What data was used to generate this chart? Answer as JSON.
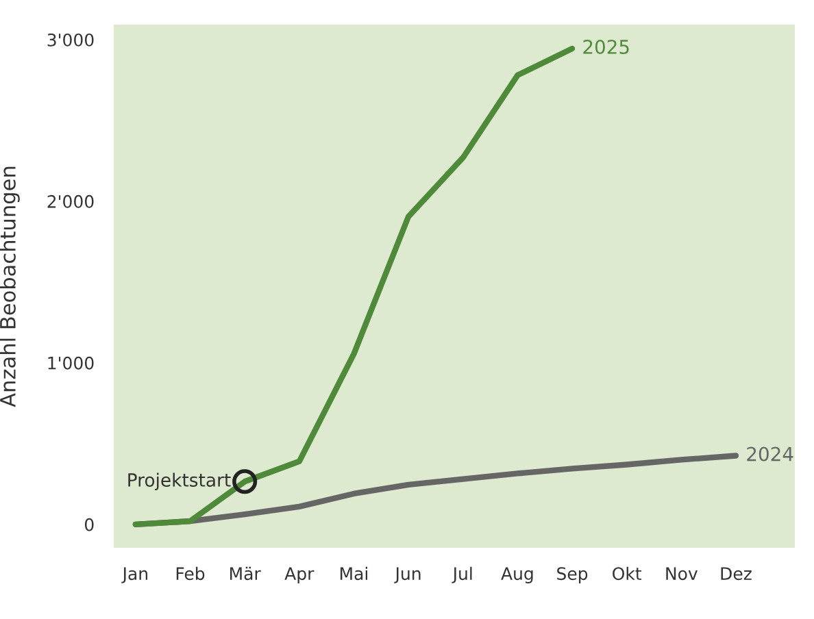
{
  "chart_data": {
    "type": "line",
    "ylabel": "Anzahl Beobachtungen",
    "categories": [
      "Jan",
      "Feb",
      "Mär",
      "Apr",
      "Mai",
      "Jun",
      "Jul",
      "Aug",
      "Sep",
      "Okt",
      "Nov",
      "Dez"
    ],
    "series": [
      {
        "name": "2024",
        "color": "#666666",
        "values": [
          0,
          20,
          62,
          110,
          190,
          245,
          280,
          315,
          345,
          370,
          400,
          425
        ]
      },
      {
        "name": "2025",
        "color": "#4e8a3a",
        "values": [
          0,
          20,
          265,
          390,
          1055,
          1905,
          2270,
          2780,
          2945,
          null,
          null,
          null
        ]
      }
    ],
    "ylim": [
      -145,
      3093
    ],
    "yticks": [
      0,
      {
        "value": 1000,
        "label": "1'000"
      },
      {
        "value": 2000,
        "label": "2'000"
      },
      {
        "value": 3000,
        "label": "3'000"
      }
    ],
    "annotations": [
      {
        "text": "Projektstart",
        "x": "Mär",
        "y": 265
      }
    ],
    "grid": false,
    "legend": false,
    "marker": "none",
    "line_style": "solid"
  }
}
